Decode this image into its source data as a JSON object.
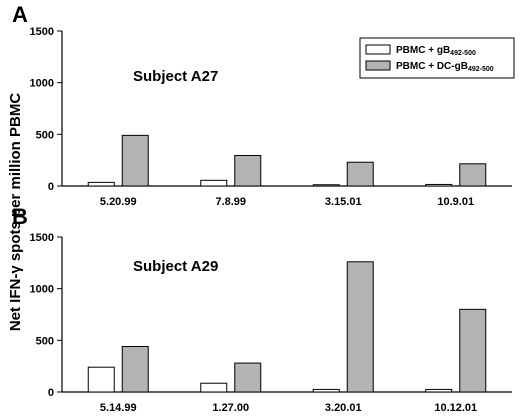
{
  "ylabel": "Net IFN-γ spots per million PBMC",
  "legend": {
    "series": [
      {
        "prefix": "PBMC + gB",
        "sub": "492-500",
        "color": "#ffffff"
      },
      {
        "prefix": "PBMC + DC-gB",
        "sub": "492-500",
        "color": "#b4b4b4"
      }
    ]
  },
  "chart_data": [
    {
      "type": "bar",
      "panel": "A",
      "title": "Subject A27",
      "categories": [
        "5.20.99",
        "7.8.99",
        "3.15.01",
        "10.9.01"
      ],
      "series": [
        {
          "name": "PBMC + gB492-500",
          "values": [
            35,
            55,
            12,
            15
          ]
        },
        {
          "name": "PBMC + DC-gB492-500",
          "values": [
            490,
            295,
            230,
            215
          ]
        }
      ],
      "ylim": [
        0,
        1500
      ],
      "yticks": [
        "0",
        "500",
        "1000",
        "1500"
      ]
    },
    {
      "type": "bar",
      "panel": "B",
      "title": "Subject A29",
      "categories": [
        "5.14.99",
        "1.27.00",
        "3.20.01",
        "10.12.01"
      ],
      "series": [
        {
          "name": "PBMC + gB492-500",
          "values": [
            240,
            85,
            25,
            25
          ]
        },
        {
          "name": "PBMC + DC-gB492-500",
          "values": [
            440,
            280,
            1260,
            800
          ]
        }
      ],
      "ylim": [
        0,
        1500
      ],
      "yticks": [
        "0",
        "500",
        "1000",
        "1500"
      ]
    }
  ]
}
